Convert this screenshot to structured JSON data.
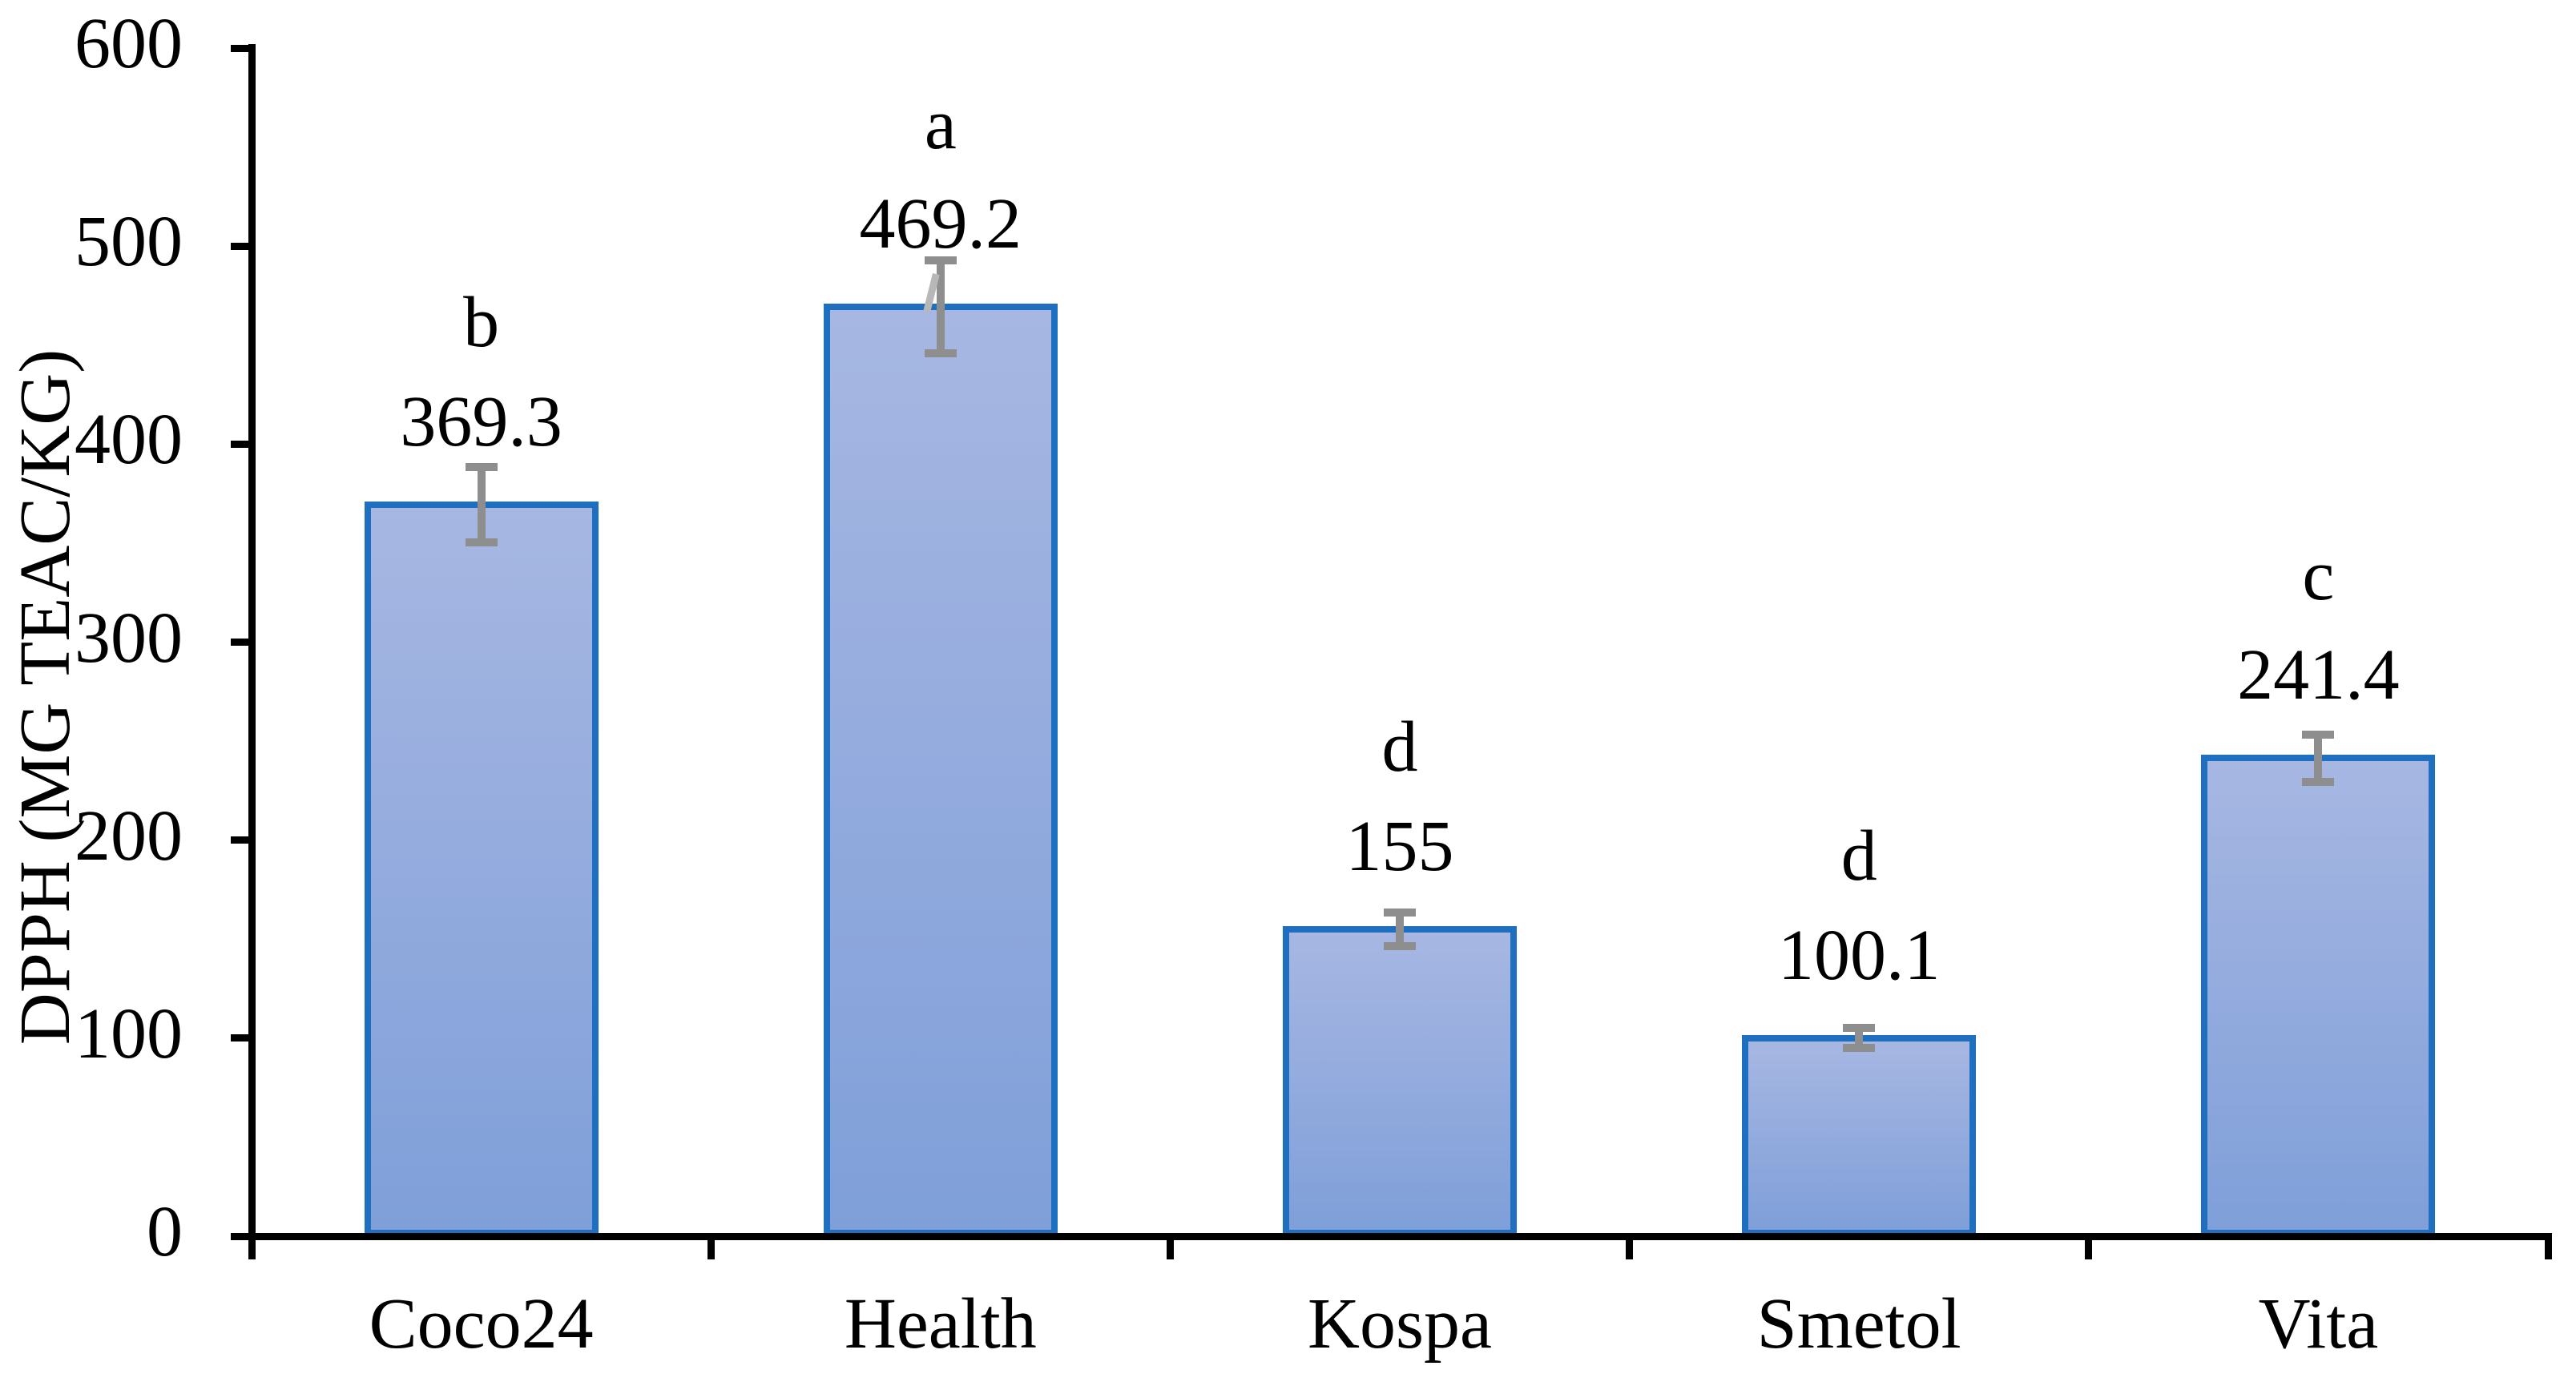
{
  "chart_data": {
    "type": "bar",
    "title": "",
    "xlabel": "",
    "ylabel": "DPPH (MG TEAC/KG)",
    "ylim": [
      0,
      600
    ],
    "y_tick_interval": 100,
    "y_ticks": [
      600,
      500,
      400,
      300,
      200,
      100,
      0
    ],
    "y_tick_labels": [
      "600",
      "500",
      "400",
      "300",
      "200",
      "100",
      "0"
    ],
    "grid": false,
    "legend": false,
    "categories": [
      "Coco24",
      "Health",
      "Kospa",
      "Smetol",
      "Vita"
    ],
    "values": [
      369.3,
      469.2,
      155,
      100.1,
      241.4
    ],
    "value_labels": [
      "369.3",
      "469.2",
      "155",
      "100.1",
      "241.4"
    ],
    "letter_labels": [
      "b",
      "a",
      "d",
      "d",
      "c"
    ],
    "error_bars": [
      19,
      23.5,
      8.5,
      5,
      12
    ],
    "whisker_styles": [
      "straight",
      "skewed",
      "straight",
      "straight",
      "straight"
    ],
    "colors": {
      "bar_fill_top": "#a7b7e2",
      "bar_fill_bottom": "#7f9fd9",
      "bar_border": "#1e6fc0",
      "error_bar": "#8e8e8e",
      "error_bar_artifact": "#b7b7b7",
      "axis": "#000000",
      "text": "#000000",
      "background": "#ffffff"
    }
  }
}
